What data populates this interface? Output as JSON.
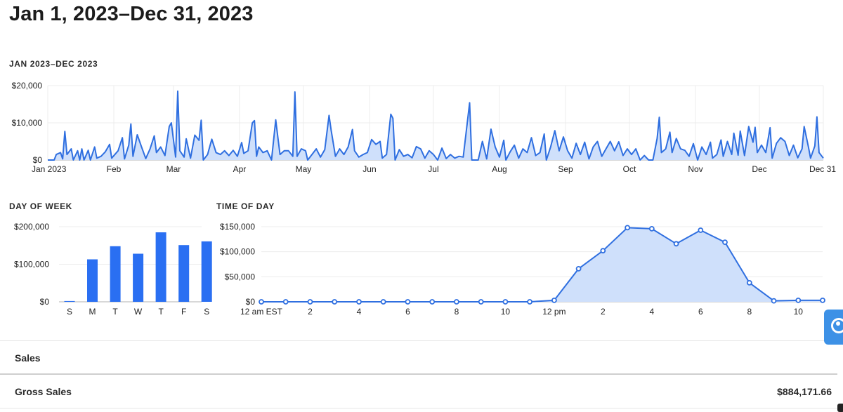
{
  "header": {
    "title": "Jan 1, 2023–Dec 31, 2023"
  },
  "sections": {
    "yearly": "JAN 2023–DEC 2023",
    "day_of_week": "DAY OF WEEK",
    "time_of_day": "TIME OF DAY"
  },
  "table": {
    "section_title": "Sales",
    "rows": [
      {
        "label": "Gross Sales",
        "value": "$884,171.66"
      }
    ]
  },
  "help": {
    "icon": "help-lifebuoy-icon",
    "color": "#3d91e6"
  },
  "colors": {
    "accent": "#2f6fe0",
    "bar": "#2a6ff2",
    "fill": "#cfe0fb",
    "grid": "#ececec",
    "axis": "#b0b0b0"
  },
  "chart_data": [
    {
      "id": "daily",
      "type": "area",
      "title": "JAN 2023–DEC 2023",
      "x_start": "2023-01-01",
      "x_end": "2023-12-31",
      "x_ticks": [
        {
          "label": "Jan 2023",
          "date": "2023-01-01"
        },
        {
          "label": "Feb",
          "date": "2023-02-01"
        },
        {
          "label": "Mar",
          "date": "2023-03-01"
        },
        {
          "label": "Apr",
          "date": "2023-04-01"
        },
        {
          "label": "May",
          "date": "2023-05-01"
        },
        {
          "label": "Jun",
          "date": "2023-06-01"
        },
        {
          "label": "Jul",
          "date": "2023-07-01"
        },
        {
          "label": "Aug",
          "date": "2023-08-01"
        },
        {
          "label": "Sep",
          "date": "2023-09-01"
        },
        {
          "label": "Oct",
          "date": "2023-10-01"
        },
        {
          "label": "Nov",
          "date": "2023-11-01"
        },
        {
          "label": "Dec",
          "date": "2023-12-01"
        },
        {
          "label": "Dec 31",
          "date": "2023-12-31"
        }
      ],
      "y_ticks": [
        "$0",
        "$10,000",
        "$20,000"
      ],
      "ylim": [
        0,
        20000
      ],
      "grid": true,
      "points": [
        [
          "2023-01-01",
          0
        ],
        [
          "2023-01-04",
          0
        ],
        [
          "2023-01-05",
          1500
        ],
        [
          "2023-01-07",
          2000
        ],
        [
          "2023-01-08",
          300
        ],
        [
          "2023-01-09",
          7700
        ],
        [
          "2023-01-10",
          1500
        ],
        [
          "2023-01-12",
          3000
        ],
        [
          "2023-01-13",
          0
        ],
        [
          "2023-01-15",
          2500
        ],
        [
          "2023-01-16",
          0
        ],
        [
          "2023-01-17",
          3000
        ],
        [
          "2023-01-18",
          0
        ],
        [
          "2023-01-20",
          2600
        ],
        [
          "2023-01-21",
          0
        ],
        [
          "2023-01-23",
          3500
        ],
        [
          "2023-01-24",
          500
        ],
        [
          "2023-01-26",
          1000
        ],
        [
          "2023-01-28",
          2200
        ],
        [
          "2023-01-30",
          4200
        ],
        [
          "2023-01-31",
          500
        ],
        [
          "2023-02-03",
          2500
        ],
        [
          "2023-02-05",
          6000
        ],
        [
          "2023-02-06",
          300
        ],
        [
          "2023-02-08",
          4000
        ],
        [
          "2023-02-09",
          9700
        ],
        [
          "2023-02-10",
          1000
        ],
        [
          "2023-02-12",
          6800
        ],
        [
          "2023-02-14",
          3500
        ],
        [
          "2023-02-16",
          400
        ],
        [
          "2023-02-18",
          3000
        ],
        [
          "2023-02-20",
          6500
        ],
        [
          "2023-02-21",
          2000
        ],
        [
          "2023-02-23",
          3500
        ],
        [
          "2023-02-25",
          1200
        ],
        [
          "2023-02-27",
          9000
        ],
        [
          "2023-02-28",
          10000
        ],
        [
          "2023-03-02",
          800
        ],
        [
          "2023-03-03",
          18500
        ],
        [
          "2023-03-04",
          2500
        ],
        [
          "2023-03-06",
          800
        ],
        [
          "2023-03-07",
          5700
        ],
        [
          "2023-03-09",
          500
        ],
        [
          "2023-03-11",
          6700
        ],
        [
          "2023-03-13",
          5300
        ],
        [
          "2023-03-14",
          10700
        ],
        [
          "2023-03-15",
          0
        ],
        [
          "2023-03-17",
          1500
        ],
        [
          "2023-03-19",
          5600
        ],
        [
          "2023-03-21",
          2000
        ],
        [
          "2023-03-23",
          1500
        ],
        [
          "2023-03-25",
          2500
        ],
        [
          "2023-03-27",
          1200
        ],
        [
          "2023-03-29",
          2600
        ],
        [
          "2023-03-31",
          1000
        ],
        [
          "2023-04-02",
          4700
        ],
        [
          "2023-04-03",
          1800
        ],
        [
          "2023-04-05",
          2500
        ],
        [
          "2023-04-07",
          10000
        ],
        [
          "2023-04-08",
          10600
        ],
        [
          "2023-04-09",
          1000
        ],
        [
          "2023-04-10",
          3500
        ],
        [
          "2023-04-12",
          2000
        ],
        [
          "2023-04-14",
          2500
        ],
        [
          "2023-04-16",
          0
        ],
        [
          "2023-04-18",
          10800
        ],
        [
          "2023-04-19",
          6000
        ],
        [
          "2023-04-20",
          1500
        ],
        [
          "2023-04-22",
          2500
        ],
        [
          "2023-04-24",
          2500
        ],
        [
          "2023-04-26",
          1000
        ],
        [
          "2023-04-27",
          18300
        ],
        [
          "2023-04-28",
          1000
        ],
        [
          "2023-04-30",
          3000
        ],
        [
          "2023-05-02",
          2500
        ],
        [
          "2023-05-03",
          0
        ],
        [
          "2023-05-05",
          1500
        ],
        [
          "2023-05-07",
          3000
        ],
        [
          "2023-05-09",
          800
        ],
        [
          "2023-05-11",
          2800
        ],
        [
          "2023-05-13",
          12000
        ],
        [
          "2023-05-14",
          8000
        ],
        [
          "2023-05-16",
          1000
        ],
        [
          "2023-05-18",
          3000
        ],
        [
          "2023-05-20",
          1500
        ],
        [
          "2023-05-22",
          3500
        ],
        [
          "2023-05-24",
          8200
        ],
        [
          "2023-05-25",
          2500
        ],
        [
          "2023-05-27",
          800
        ],
        [
          "2023-05-29",
          1500
        ],
        [
          "2023-05-31",
          2000
        ],
        [
          "2023-06-02",
          5500
        ],
        [
          "2023-06-04",
          4200
        ],
        [
          "2023-06-06",
          5000
        ],
        [
          "2023-06-07",
          500
        ],
        [
          "2023-06-09",
          1500
        ],
        [
          "2023-06-11",
          12300
        ],
        [
          "2023-06-12",
          11200
        ],
        [
          "2023-06-13",
          0
        ],
        [
          "2023-06-15",
          2800
        ],
        [
          "2023-06-17",
          1000
        ],
        [
          "2023-06-19",
          1500
        ],
        [
          "2023-06-21",
          600
        ],
        [
          "2023-06-23",
          3600
        ],
        [
          "2023-06-25",
          3000
        ],
        [
          "2023-06-27",
          500
        ],
        [
          "2023-06-29",
          2500
        ],
        [
          "2023-07-01",
          1500
        ],
        [
          "2023-07-03",
          0
        ],
        [
          "2023-07-05",
          3200
        ],
        [
          "2023-07-07",
          400
        ],
        [
          "2023-07-09",
          1500
        ],
        [
          "2023-07-11",
          500
        ],
        [
          "2023-07-13",
          1000
        ],
        [
          "2023-07-15",
          800
        ],
        [
          "2023-07-18",
          15400
        ],
        [
          "2023-07-19",
          0
        ],
        [
          "2023-07-22",
          0
        ],
        [
          "2023-07-24",
          5000
        ],
        [
          "2023-07-26",
          300
        ],
        [
          "2023-07-28",
          8300
        ],
        [
          "2023-07-30",
          3500
        ],
        [
          "2023-08-01",
          800
        ],
        [
          "2023-08-03",
          5300
        ],
        [
          "2023-08-04",
          0
        ],
        [
          "2023-08-06",
          2200
        ],
        [
          "2023-08-08",
          4000
        ],
        [
          "2023-08-10",
          500
        ],
        [
          "2023-08-12",
          3000
        ],
        [
          "2023-08-14",
          2000
        ],
        [
          "2023-08-16",
          6000
        ],
        [
          "2023-08-18",
          1200
        ],
        [
          "2023-08-20",
          2000
        ],
        [
          "2023-08-22",
          7000
        ],
        [
          "2023-08-23",
          0
        ],
        [
          "2023-08-25",
          3500
        ],
        [
          "2023-08-27",
          7900
        ],
        [
          "2023-08-29",
          2500
        ],
        [
          "2023-08-31",
          6200
        ],
        [
          "2023-09-02",
          2500
        ],
        [
          "2023-09-04",
          500
        ],
        [
          "2023-09-06",
          4500
        ],
        [
          "2023-09-08",
          1500
        ],
        [
          "2023-09-10",
          4800
        ],
        [
          "2023-09-12",
          300
        ],
        [
          "2023-09-14",
          3500
        ],
        [
          "2023-09-16",
          5000
        ],
        [
          "2023-09-18",
          1000
        ],
        [
          "2023-09-20",
          3000
        ],
        [
          "2023-09-22",
          5000
        ],
        [
          "2023-09-24",
          2500
        ],
        [
          "2023-09-26",
          4900
        ],
        [
          "2023-09-28",
          1200
        ],
        [
          "2023-09-30",
          3000
        ],
        [
          "2023-10-02",
          1500
        ],
        [
          "2023-10-04",
          3000
        ],
        [
          "2023-10-06",
          0
        ],
        [
          "2023-10-08",
          1200
        ],
        [
          "2023-10-10",
          0
        ],
        [
          "2023-10-12",
          0
        ],
        [
          "2023-10-14",
          5800
        ],
        [
          "2023-10-15",
          11500
        ],
        [
          "2023-10-16",
          2000
        ],
        [
          "2023-10-18",
          3000
        ],
        [
          "2023-10-20",
          7500
        ],
        [
          "2023-10-21",
          2000
        ],
        [
          "2023-10-23",
          5800
        ],
        [
          "2023-10-25",
          3000
        ],
        [
          "2023-10-27",
          2600
        ],
        [
          "2023-10-29",
          1000
        ],
        [
          "2023-10-31",
          4400
        ],
        [
          "2023-11-02",
          0
        ],
        [
          "2023-11-04",
          3500
        ],
        [
          "2023-11-06",
          1500
        ],
        [
          "2023-11-08",
          4800
        ],
        [
          "2023-11-09",
          500
        ],
        [
          "2023-11-11",
          1500
        ],
        [
          "2023-11-13",
          5400
        ],
        [
          "2023-11-14",
          1000
        ],
        [
          "2023-11-16",
          5000
        ],
        [
          "2023-11-18",
          1500
        ],
        [
          "2023-11-19",
          7200
        ],
        [
          "2023-11-21",
          1300
        ],
        [
          "2023-11-22",
          7800
        ],
        [
          "2023-11-24",
          1200
        ],
        [
          "2023-11-26",
          9000
        ],
        [
          "2023-11-28",
          4800
        ],
        [
          "2023-11-29",
          8800
        ],
        [
          "2023-11-30",
          2000
        ],
        [
          "2023-12-02",
          4000
        ],
        [
          "2023-12-04",
          2000
        ],
        [
          "2023-12-06",
          8700
        ],
        [
          "2023-12-07",
          500
        ],
        [
          "2023-12-09",
          4500
        ],
        [
          "2023-12-11",
          6000
        ],
        [
          "2023-12-13",
          5000
        ],
        [
          "2023-12-15",
          1200
        ],
        [
          "2023-12-17",
          4000
        ],
        [
          "2023-12-19",
          600
        ],
        [
          "2023-12-21",
          3000
        ],
        [
          "2023-12-22",
          9000
        ],
        [
          "2023-12-24",
          3500
        ],
        [
          "2023-12-25",
          500
        ],
        [
          "2023-12-27",
          3800
        ],
        [
          "2023-12-28",
          11600
        ],
        [
          "2023-12-29",
          2000
        ],
        [
          "2023-12-31",
          500
        ]
      ]
    },
    {
      "id": "day_of_week",
      "type": "bar",
      "title": "DAY OF WEEK",
      "categories": [
        "S",
        "M",
        "T",
        "W",
        "T",
        "F",
        "S"
      ],
      "values": [
        2000,
        113000,
        148000,
        128000,
        185000,
        151000,
        161000
      ],
      "y_ticks": [
        "$0",
        "$100,000",
        "$200,000"
      ],
      "ylim": [
        0,
        200000
      ],
      "grid": true
    },
    {
      "id": "time_of_day",
      "type": "area",
      "title": "TIME OF DAY",
      "hours": [
        0,
        1,
        2,
        3,
        4,
        5,
        6,
        7,
        8,
        9,
        10,
        11,
        12,
        13,
        14,
        15,
        16,
        17,
        18,
        19,
        20,
        21,
        22,
        23
      ],
      "values": [
        0,
        0,
        0,
        0,
        0,
        0,
        0,
        0,
        0,
        0,
        0,
        0,
        3000,
        66000,
        102000,
        148000,
        146000,
        116000,
        143000,
        119000,
        38000,
        2000,
        3000,
        3000
      ],
      "x_ticks": [
        {
          "label": "12 am EST",
          "hour": 0
        },
        {
          "label": "2",
          "hour": 2
        },
        {
          "label": "4",
          "hour": 4
        },
        {
          "label": "6",
          "hour": 6
        },
        {
          "label": "8",
          "hour": 8
        },
        {
          "label": "10",
          "hour": 10
        },
        {
          "label": "12 pm",
          "hour": 12
        },
        {
          "label": "2",
          "hour": 14
        },
        {
          "label": "4",
          "hour": 16
        },
        {
          "label": "6",
          "hour": 18
        },
        {
          "label": "8",
          "hour": 20
        },
        {
          "label": "10",
          "hour": 22
        }
      ],
      "y_ticks": [
        "$0",
        "$50,000",
        "$100,000",
        "$150,000"
      ],
      "ylim": [
        0,
        150000
      ],
      "grid": true
    }
  ]
}
